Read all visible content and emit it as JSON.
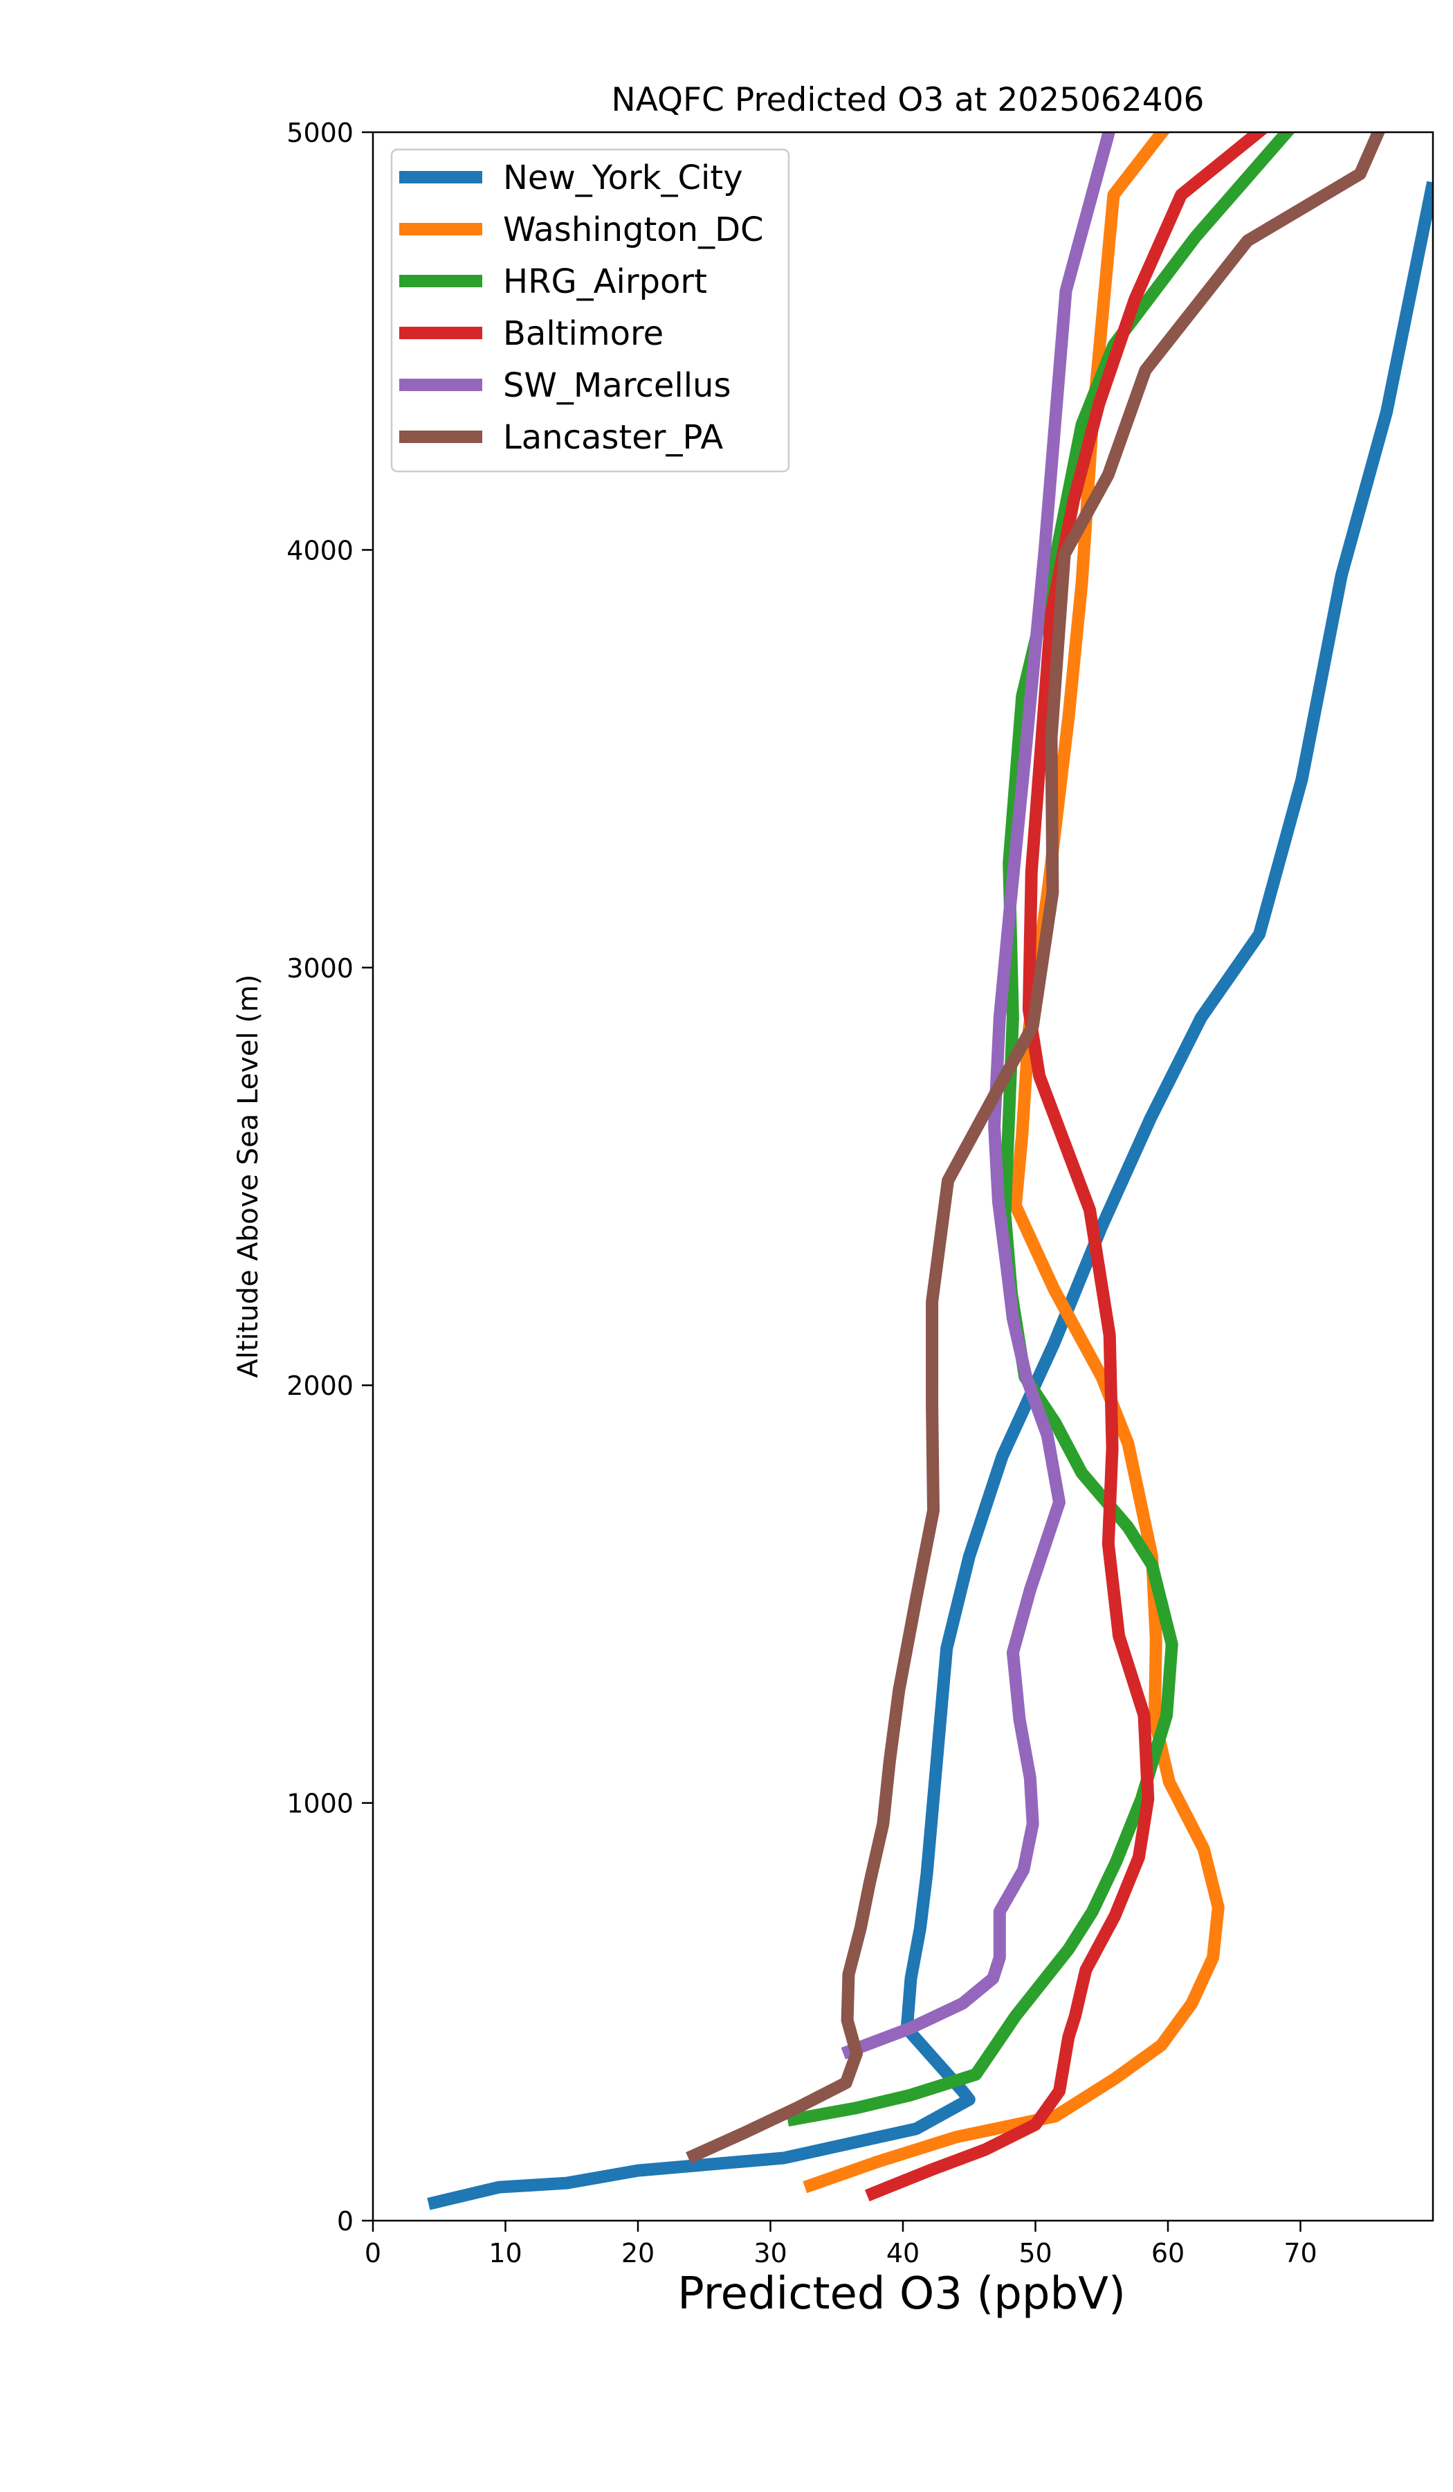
{
  "chart_data": {
    "type": "line",
    "title": "NAQFC Predicted O3 at 2025062406",
    "xlabel": "Predicted O3 (ppbV)",
    "ylabel": "Altitude Above Sea Level (m)",
    "xlim": [
      0,
      80
    ],
    "ylim": [
      0,
      5000
    ],
    "x_ticks": [
      0,
      10,
      20,
      30,
      40,
      50,
      60,
      70
    ],
    "y_ticks": [
      0,
      1000,
      2000,
      3000,
      4000,
      5000
    ],
    "grid": false,
    "legend_position": "upper-left",
    "series": [
      {
        "name": "New_York_City",
        "color": "#1f77b4",
        "points": [
          [
            4.2,
            40
          ],
          [
            9.5,
            80
          ],
          [
            14.6,
            90
          ],
          [
            20,
            120
          ],
          [
            31,
            150
          ],
          [
            41,
            220
          ],
          [
            45,
            290
          ],
          [
            44.5,
            310
          ],
          [
            40.3,
            460
          ],
          [
            40.6,
            580
          ],
          [
            41.3,
            700
          ],
          [
            41.8,
            830
          ],
          [
            43.3,
            1370
          ],
          [
            45,
            1590
          ],
          [
            47.5,
            1830
          ],
          [
            51.4,
            2100
          ],
          [
            55,
            2380
          ],
          [
            58.7,
            2640
          ],
          [
            62.5,
            2880
          ],
          [
            66.9,
            3080
          ],
          [
            70.1,
            3450
          ],
          [
            73.1,
            3940
          ],
          [
            76.5,
            4330
          ],
          [
            80.0,
            4880
          ]
        ]
      },
      {
        "name": "Washington_DC",
        "color": "#ff7f0e",
        "points": [
          [
            32.6,
            80
          ],
          [
            38,
            140
          ],
          [
            44,
            200
          ],
          [
            51.5,
            250
          ],
          [
            56,
            340
          ],
          [
            59.5,
            420
          ],
          [
            61.8,
            520
          ],
          [
            63.4,
            630
          ],
          [
            63.8,
            750
          ],
          [
            62.7,
            890
          ],
          [
            60.1,
            1050
          ],
          [
            59,
            1200
          ],
          [
            59.1,
            1390
          ],
          [
            58.8,
            1590
          ],
          [
            57,
            1860
          ],
          [
            55,
            2020
          ],
          [
            51.4,
            2230
          ],
          [
            48.5,
            2430
          ],
          [
            49,
            2600
          ],
          [
            49.5,
            2850
          ],
          [
            51,
            3200
          ],
          [
            52.5,
            3600
          ],
          [
            53.5,
            3920
          ],
          [
            54.3,
            4300
          ],
          [
            55.9,
            4850
          ],
          [
            60.3,
            5030
          ]
        ]
      },
      {
        "name": "HRG_Airport",
        "color": "#2ca02c",
        "points": [
          [
            31.3,
            240
          ],
          [
            36.5,
            270
          ],
          [
            40.5,
            300
          ],
          [
            45.5,
            350
          ],
          [
            47,
            420
          ],
          [
            48.5,
            490
          ],
          [
            50.5,
            570
          ],
          [
            52.5,
            650
          ],
          [
            54.3,
            740
          ],
          [
            56.1,
            860
          ],
          [
            58,
            1010
          ],
          [
            59.9,
            1210
          ],
          [
            60.3,
            1380
          ],
          [
            58.8,
            1570
          ],
          [
            57,
            1660
          ],
          [
            53.5,
            1790
          ],
          [
            51.5,
            1910
          ],
          [
            49.2,
            2020
          ],
          [
            48.2,
            2220
          ],
          [
            47.7,
            2410
          ],
          [
            48.3,
            2880
          ],
          [
            48,
            3250
          ],
          [
            49,
            3650
          ],
          [
            51.5,
            3980
          ],
          [
            53.5,
            4300
          ],
          [
            55.9,
            4490
          ],
          [
            62.1,
            4750
          ],
          [
            69.8,
            5030
          ]
        ]
      },
      {
        "name": "Baltimore",
        "color": "#d62728",
        "points": [
          [
            37.3,
            60
          ],
          [
            42,
            120
          ],
          [
            46.2,
            170
          ],
          [
            50,
            230
          ],
          [
            51.8,
            310
          ],
          [
            52.5,
            440
          ],
          [
            53,
            490
          ],
          [
            53.8,
            600
          ],
          [
            56,
            730
          ],
          [
            57.8,
            870
          ],
          [
            58.5,
            1010
          ],
          [
            58.2,
            1210
          ],
          [
            56.3,
            1400
          ],
          [
            55.5,
            1620
          ],
          [
            55.8,
            1850
          ],
          [
            55.6,
            2120
          ],
          [
            54.1,
            2420
          ],
          [
            50.3,
            2740
          ],
          [
            49.5,
            2900
          ],
          [
            49.7,
            3230
          ],
          [
            50.5,
            3560
          ],
          [
            51.2,
            3850
          ],
          [
            52.9,
            4120
          ],
          [
            54.8,
            4350
          ],
          [
            57.5,
            4600
          ],
          [
            61,
            4850
          ],
          [
            68,
            5030
          ]
        ]
      },
      {
        "name": "SW_Marcellus",
        "color": "#9467bd",
        "points": [
          [
            35.5,
            400
          ],
          [
            40.5,
            460
          ],
          [
            44.5,
            520
          ],
          [
            46.8,
            580
          ],
          [
            47.3,
            630
          ],
          [
            47.3,
            740
          ],
          [
            49.1,
            840
          ],
          [
            49.8,
            950
          ],
          [
            49.6,
            1060
          ],
          [
            48.8,
            1200
          ],
          [
            48.3,
            1360
          ],
          [
            49.6,
            1510
          ],
          [
            51.8,
            1720
          ],
          [
            50.9,
            1880
          ],
          [
            49.3,
            2020
          ],
          [
            48.3,
            2160
          ],
          [
            47.8,
            2290
          ],
          [
            47.2,
            2440
          ],
          [
            46.9,
            2620
          ],
          [
            47.3,
            2880
          ],
          [
            48.1,
            3150
          ],
          [
            49.2,
            3500
          ],
          [
            50.7,
            4000
          ],
          [
            52.3,
            4620
          ],
          [
            55.8,
            5030
          ]
        ]
      },
      {
        "name": "Lancaster_PA",
        "color": "#8c564b",
        "points": [
          [
            23.8,
            150
          ],
          [
            28,
            210
          ],
          [
            32,
            270
          ],
          [
            35.7,
            330
          ],
          [
            36.5,
            400
          ],
          [
            35.8,
            480
          ],
          [
            35.9,
            590
          ],
          [
            36.8,
            700
          ],
          [
            37.5,
            810
          ],
          [
            38.5,
            950
          ],
          [
            39,
            1100
          ],
          [
            39.7,
            1270
          ],
          [
            41,
            1490
          ],
          [
            42.3,
            1700
          ],
          [
            42.2,
            1950
          ],
          [
            42.2,
            2200
          ],
          [
            43.4,
            2490
          ],
          [
            47,
            2700
          ],
          [
            49.8,
            2860
          ],
          [
            51.3,
            3180
          ],
          [
            51.2,
            3550
          ],
          [
            52.2,
            3990
          ],
          [
            55.5,
            4180
          ],
          [
            58.3,
            4430
          ],
          [
            66,
            4740
          ],
          [
            74.5,
            4900
          ],
          [
            76.3,
            5030
          ]
        ]
      }
    ]
  }
}
